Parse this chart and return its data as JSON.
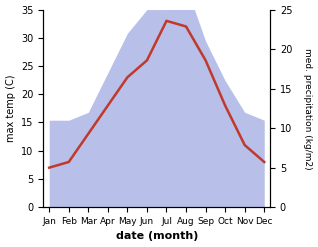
{
  "months": [
    "Jan",
    "Feb",
    "Mar",
    "Apr",
    "May",
    "Jun",
    "Jul",
    "Aug",
    "Sep",
    "Oct",
    "Nov",
    "Dec"
  ],
  "temp": [
    7,
    8,
    13,
    18,
    23,
    26,
    33,
    32,
    26,
    18,
    11,
    8
  ],
  "precip": [
    11,
    11,
    12,
    17,
    22,
    25,
    25,
    28,
    21,
    16,
    12,
    11
  ],
  "temp_color": "#c0392b",
  "precip_fill_color": "#b8bfe8",
  "temp_ylim": [
    0,
    35
  ],
  "precip_ylim": [
    0,
    25
  ],
  "xlabel": "date (month)",
  "ylabel_left": "max temp (C)",
  "ylabel_right": "med. precipitation (kg/m2)",
  "background_color": "#ffffff",
  "temp_linewidth": 1.8
}
